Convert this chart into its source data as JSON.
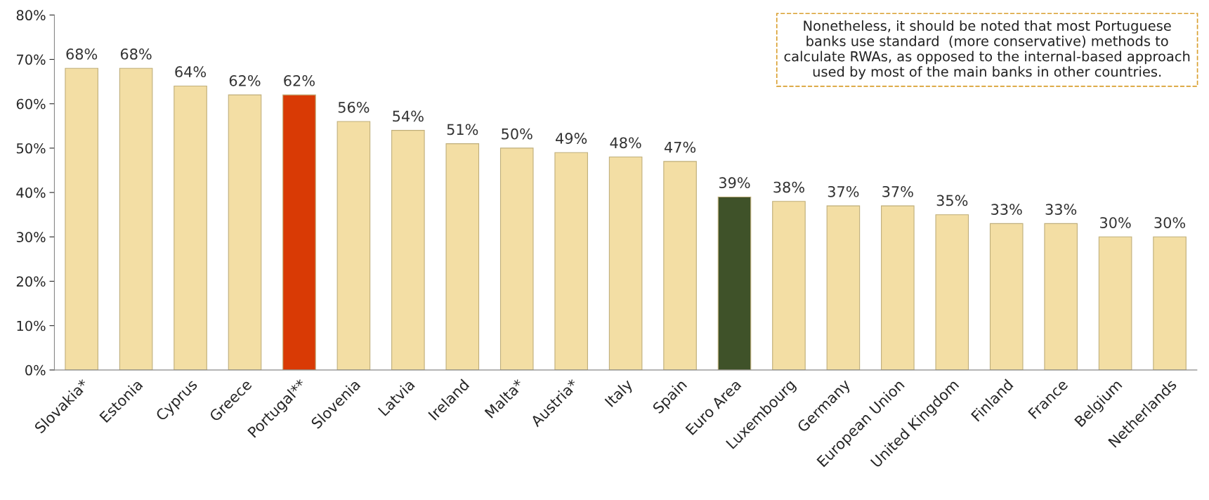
{
  "chart_data": {
    "type": "bar",
    "categories": [
      "Slovakia*",
      "Estonia",
      "Cyprus",
      "Greece",
      "Portugal**",
      "Slovenia",
      "Latvia",
      "Ireland",
      "Malta*",
      "Austria*",
      "Italy",
      "Spain",
      "Euro Area",
      "Luxembourg",
      "Germany",
      "European Union",
      "United Kingdom",
      "Finland",
      "France",
      "Belgium",
      "Netherlands"
    ],
    "values": [
      68,
      68,
      64,
      62,
      62,
      56,
      54,
      51,
      50,
      49,
      48,
      47,
      39,
      38,
      37,
      37,
      35,
      33,
      33,
      30,
      30
    ],
    "value_labels": [
      "68%",
      "68%",
      "64%",
      "62%",
      "62%",
      "56%",
      "54%",
      "51%",
      "50%",
      "49%",
      "48%",
      "47%",
      "39%",
      "38%",
      "37%",
      "37%",
      "35%",
      "33%",
      "33%",
      "30%",
      "30%"
    ],
    "colors": [
      "#f3dea4",
      "#f3dea4",
      "#f3dea4",
      "#f3dea4",
      "#d93a05",
      "#f3dea4",
      "#f3dea4",
      "#f3dea4",
      "#f3dea4",
      "#f3dea4",
      "#f3dea4",
      "#f3dea4",
      "#3f5229",
      "#f3dea4",
      "#f3dea4",
      "#f3dea4",
      "#f3dea4",
      "#f3dea4",
      "#f3dea4",
      "#f3dea4",
      "#f3dea4"
    ],
    "ylim": [
      0,
      80
    ],
    "yticks": [
      {
        "value": 0,
        "label": "0%"
      },
      {
        "value": 10,
        "label": "10%"
      },
      {
        "value": 20,
        "label": "20%"
      },
      {
        "value": 30,
        "label": "30%"
      },
      {
        "value": 40,
        "label": "40%"
      },
      {
        "value": 50,
        "label": "50%"
      },
      {
        "value": 60,
        "label": "60%"
      },
      {
        "value": 70,
        "label": "70%"
      },
      {
        "value": 80,
        "label": "80%"
      }
    ],
    "grid": false,
    "annotations": [
      "Nonetheless, it should be noted that most Portuguese\nbanks use standard  (more conservative) methods to\ncalculate RWAs, as opposed to the internal-based approach\nused by most of the main banks in other countries."
    ]
  }
}
